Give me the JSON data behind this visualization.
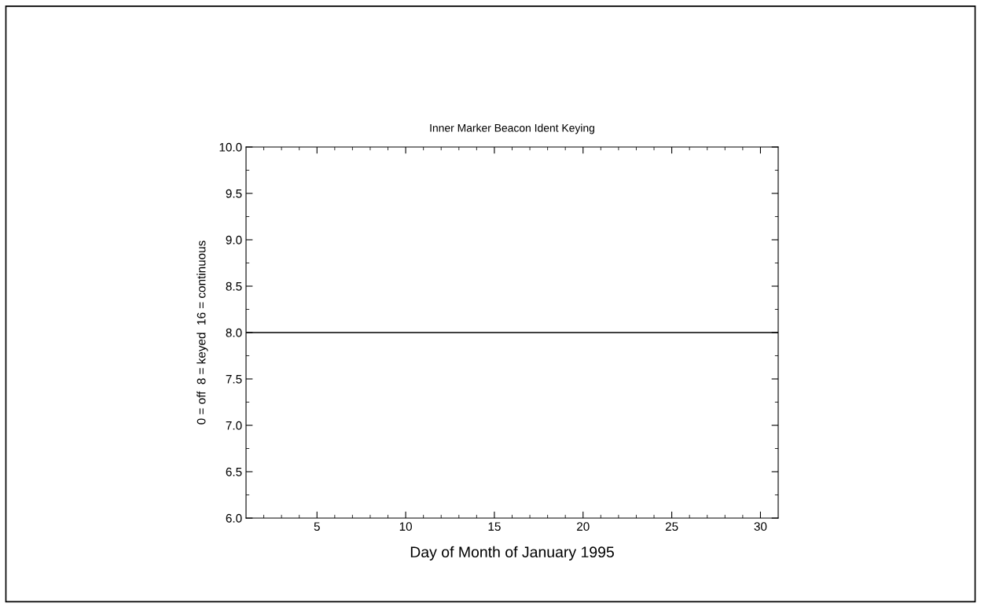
{
  "chart_data": {
    "type": "line",
    "title": "Inner Marker Beacon Ident Keying",
    "xlabel": "Day of Month of January 1995",
    "ylabel": "0 = off  8 = keyed  16 = continuous",
    "x": [
      1,
      31
    ],
    "series": [
      {
        "color": "#000000",
        "values": [
          8,
          8
        ]
      }
    ],
    "xlim": [
      1,
      31
    ],
    "xticks": [
      5,
      10,
      15,
      20,
      25,
      30
    ],
    "ylim": [
      6,
      10
    ],
    "yticks": [
      {
        "value": 6,
        "label": "6.0"
      },
      {
        "value": 6.5,
        "label": "6.5"
      },
      {
        "value": 7,
        "label": "7.0"
      },
      {
        "value": 7.5,
        "label": "7.5"
      },
      {
        "value": 8,
        "label": "8.0"
      },
      {
        "value": 8.5,
        "label": "8.5"
      },
      {
        "value": 9,
        "label": "9.0"
      },
      {
        "value": 9.5,
        "label": "9.5"
      },
      {
        "value": 10,
        "label": "10.0"
      }
    ],
    "grid": false,
    "legend": false,
    "marker": "none",
    "line_style": "solid"
  }
}
